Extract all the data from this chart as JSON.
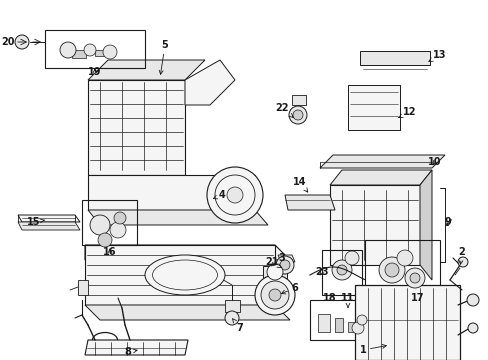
{
  "bg_color": "#ffffff",
  "fig_width": 4.89,
  "fig_height": 3.6,
  "dpi": 100,
  "lc": "#1a1a1a",
  "fc_light": "#f5f5f5",
  "fc_mid": "#e8e8e8",
  "fc_dark": "#d0d0d0",
  "font_size": 7.0
}
